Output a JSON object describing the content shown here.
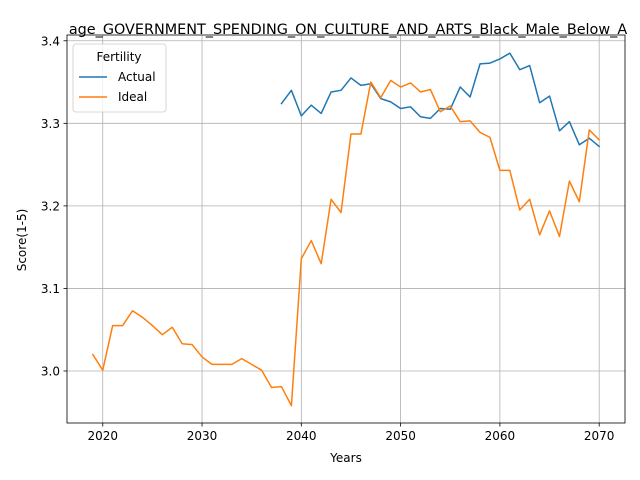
{
  "chart_data": {
    "type": "line",
    "title": "age_GOVERNMENT_SPENDING_ON_CULTURE_AND_ARTS_Black_Male_Below_A",
    "xlabel": "Years",
    "ylabel": "Score(1-5)",
    "xlim": [
      2016.4,
      2072.6
    ],
    "ylim": [
      2.937,
      3.407
    ],
    "xticks": [
      2020,
      2030,
      2040,
      2050,
      2060,
      2070
    ],
    "xtick_labels": [
      "2020",
      "2030",
      "2040",
      "2050",
      "2060",
      "2070"
    ],
    "yticks": [
      3.0,
      3.1,
      3.2,
      3.3,
      3.4
    ],
    "ytick_labels": [
      "3.0",
      "3.1",
      "3.2",
      "3.3",
      "3.4"
    ],
    "grid": true,
    "legend": {
      "title": "Fertility",
      "position": "top-left"
    },
    "series": [
      {
        "name": "Actual",
        "color": "#1f77b4",
        "x": [
          2038,
          2039,
          2040,
          2041,
          2042,
          2043,
          2044,
          2045,
          2046,
          2047,
          2048,
          2049,
          2050,
          2051,
          2052,
          2053,
          2054,
          2055,
          2056,
          2057,
          2058,
          2059,
          2060,
          2061,
          2062,
          2063,
          2064,
          2065,
          2066,
          2067,
          2068,
          2069,
          2070
        ],
        "y": [
          3.324,
          3.34,
          3.309,
          3.322,
          3.312,
          3.338,
          3.34,
          3.355,
          3.346,
          3.348,
          3.33,
          3.326,
          3.318,
          3.32,
          3.308,
          3.306,
          3.318,
          3.317,
          3.344,
          3.332,
          3.372,
          3.373,
          3.378,
          3.385,
          3.365,
          3.37,
          3.325,
          3.333,
          3.291,
          3.302,
          3.274,
          3.282,
          3.272
        ]
      },
      {
        "name": "Ideal",
        "color": "#ff7f0e",
        "x": [
          2019,
          2020,
          2021,
          2022,
          2023,
          2024,
          2025,
          2026,
          2027,
          2028,
          2029,
          2030,
          2031,
          2032,
          2033,
          2034,
          2035,
          2036,
          2037,
          2038,
          2039,
          2040,
          2041,
          2042,
          2043,
          2044,
          2045,
          2046,
          2047,
          2048,
          2049,
          2050,
          2051,
          2052,
          2053,
          2054,
          2055,
          2056,
          2057,
          2058,
          2059,
          2060,
          2061,
          2062,
          2063,
          2064,
          2065,
          2066,
          2067,
          2068,
          2069,
          2070
        ],
        "y": [
          3.02,
          3.001,
          3.055,
          3.055,
          3.073,
          3.065,
          3.055,
          3.044,
          3.053,
          3.033,
          3.032,
          3.017,
          3.008,
          3.008,
          3.008,
          3.015,
          3.008,
          3.001,
          2.98,
          2.981,
          2.958,
          3.136,
          3.158,
          3.13,
          3.208,
          3.192,
          3.287,
          3.287,
          3.35,
          3.331,
          3.352,
          3.344,
          3.349,
          3.338,
          3.341,
          3.314,
          3.321,
          3.302,
          3.303,
          3.289,
          3.283,
          3.243,
          3.243,
          3.195,
          3.208,
          3.165,
          3.194,
          3.163,
          3.23,
          3.205,
          3.292,
          3.28
        ]
      }
    ]
  }
}
